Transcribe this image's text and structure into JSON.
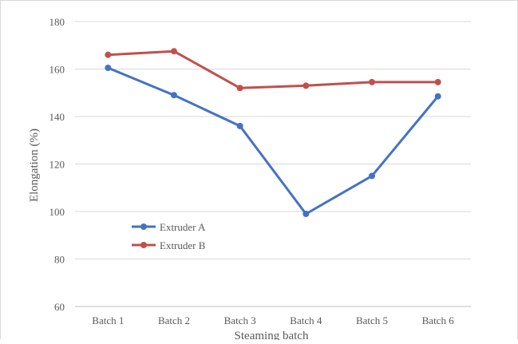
{
  "chart_data": {
    "type": "line",
    "categories": [
      "Batch 1",
      "Batch 2",
      "Batch 3",
      "Batch 4",
      "Batch 5",
      "Batch 6"
    ],
    "series": [
      {
        "name": "Extruder A",
        "color": "#4472c4",
        "values": [
          160.5,
          149,
          136,
          99,
          115,
          148.5
        ]
      },
      {
        "name": "Extruder B",
        "color": "#c0504d",
        "values": [
          166,
          167.5,
          152,
          153,
          154.5,
          154.5
        ]
      }
    ],
    "xlabel": "Steaming batch",
    "ylabel": "Elongation (%)",
    "ylim": [
      60,
      180
    ],
    "yticks": [
      60,
      80,
      100,
      120,
      140,
      160,
      180
    ],
    "grid": true,
    "legend_position": "inside-lower-left"
  }
}
